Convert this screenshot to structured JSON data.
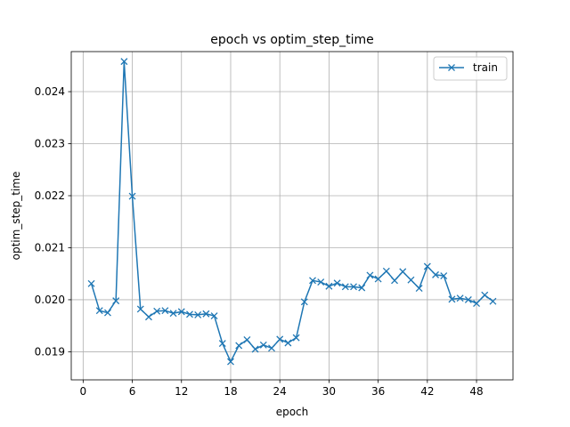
{
  "chart_data": {
    "type": "line",
    "title": "epoch vs optim_step_time",
    "xlabel": "epoch",
    "ylabel": "optim_step_time",
    "xlim": [
      -1.45,
      52.45
    ],
    "ylim": [
      0.01846,
      0.02477
    ],
    "grid": true,
    "x_ticks": [
      0,
      6,
      12,
      18,
      24,
      30,
      36,
      42,
      48
    ],
    "y_ticks": [
      0.019,
      0.02,
      0.021,
      0.022,
      0.023,
      0.024
    ],
    "y_tick_labels": [
      "0.019",
      "0.020",
      "0.021",
      "0.022",
      "0.023",
      "0.024"
    ],
    "legend_position": "top-right",
    "series": [
      {
        "name": "train",
        "color": "#1f77b4",
        "marker": "x",
        "x": [
          1,
          2,
          3,
          4,
          5,
          6,
          7,
          8,
          9,
          10,
          11,
          12,
          13,
          14,
          15,
          16,
          17,
          18,
          19,
          20,
          21,
          22,
          23,
          24,
          25,
          26,
          27,
          28,
          29,
          30,
          31,
          32,
          33,
          34,
          35,
          36,
          37,
          38,
          39,
          40,
          41,
          42,
          43,
          44,
          45,
          46,
          47,
          48,
          49,
          50
        ],
        "values": [
          0.02031,
          0.01979,
          0.01975,
          0.01998,
          0.02458,
          0.02199,
          0.01982,
          0.01967,
          0.01978,
          0.01979,
          0.01974,
          0.01977,
          0.01972,
          0.01971,
          0.01973,
          0.01969,
          0.01916,
          0.01881,
          0.01912,
          0.01923,
          0.01905,
          0.01913,
          0.01907,
          0.01924,
          0.01917,
          0.01927,
          0.01996,
          0.02037,
          0.02034,
          0.02026,
          0.02032,
          0.02025,
          0.02025,
          0.02023,
          0.02047,
          0.0204,
          0.02055,
          0.02037,
          0.02054,
          0.02038,
          0.02022,
          0.02064,
          0.02048,
          0.02046,
          0.02001,
          0.02003,
          0.02,
          0.01993,
          0.02009,
          0.01997
        ]
      }
    ]
  }
}
